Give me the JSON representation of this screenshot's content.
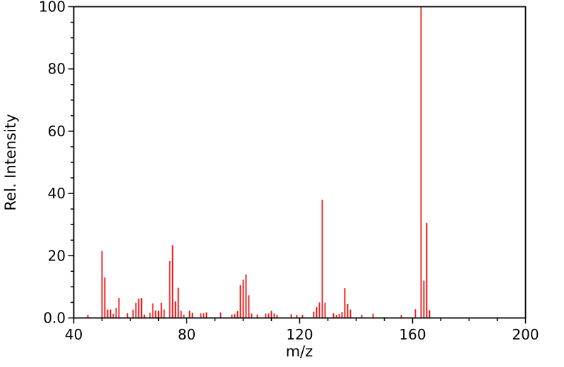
{
  "chart_data": {
    "type": "bar",
    "title": "",
    "xlabel": "m/z",
    "ylabel": "Rel. Intensity",
    "xlim": [
      40,
      200
    ],
    "ylim": [
      0,
      100
    ],
    "x_major_ticks": [
      40,
      80,
      120,
      160,
      200
    ],
    "x_major_tick_labels": [
      "40",
      "80",
      "120",
      "160",
      "200"
    ],
    "x_minor_step": 10,
    "y_major_ticks": [
      0,
      20,
      40,
      60,
      80,
      100
    ],
    "y_major_tick_labels": [
      "0.0",
      "20",
      "40",
      "60",
      "80",
      "100"
    ],
    "y_minor_step": 5,
    "grid": false,
    "legend": false,
    "bar_color": "#ee1111",
    "axis_color": "#000000",
    "background_color": "#ffffff",
    "peaks_format": "[m_over_z, relative_intensity_percent]",
    "peaks": [
      [
        45,
        1.0
      ],
      [
        50,
        21.5
      ],
      [
        51,
        13.0
      ],
      [
        52,
        2.7
      ],
      [
        53,
        2.7
      ],
      [
        54,
        1.3
      ],
      [
        55,
        3.3
      ],
      [
        56,
        6.5
      ],
      [
        59,
        1.5
      ],
      [
        61,
        2.7
      ],
      [
        62,
        4.9
      ],
      [
        63,
        6.2
      ],
      [
        64,
        6.4
      ],
      [
        65,
        1.1
      ],
      [
        67,
        1.7
      ],
      [
        68,
        4.7
      ],
      [
        69,
        2.4
      ],
      [
        70,
        2.3
      ],
      [
        71,
        4.9
      ],
      [
        72,
        2.7
      ],
      [
        74,
        18.3
      ],
      [
        75,
        23.4
      ],
      [
        76,
        5.3
      ],
      [
        77,
        9.7
      ],
      [
        78,
        2.3
      ],
      [
        79,
        1.1
      ],
      [
        81,
        2.3
      ],
      [
        82,
        1.7
      ],
      [
        85,
        1.5
      ],
      [
        86,
        1.5
      ],
      [
        87,
        1.8
      ],
      [
        92,
        1.8
      ],
      [
        96,
        1.1
      ],
      [
        97,
        1.3
      ],
      [
        98,
        2.2
      ],
      [
        99,
        10.5
      ],
      [
        100,
        12.3
      ],
      [
        101,
        14.0
      ],
      [
        102,
        7.3
      ],
      [
        103,
        1.4
      ],
      [
        105,
        1.1
      ],
      [
        108,
        1.4
      ],
      [
        109,
        1.4
      ],
      [
        110,
        2.3
      ],
      [
        111,
        1.4
      ],
      [
        112,
        1.0
      ],
      [
        117,
        1.2
      ],
      [
        119,
        1.0
      ],
      [
        121,
        1.0
      ],
      [
        125,
        2.0
      ],
      [
        126,
        3.5
      ],
      [
        127,
        5.0
      ],
      [
        128,
        38.0
      ],
      [
        129,
        4.9
      ],
      [
        132,
        1.5
      ],
      [
        133,
        1.0
      ],
      [
        134,
        1.2
      ],
      [
        135,
        1.9
      ],
      [
        136,
        9.6
      ],
      [
        137,
        4.5
      ],
      [
        138,
        2.7
      ],
      [
        142,
        1.0
      ],
      [
        146,
        1.4
      ],
      [
        156,
        1.0
      ],
      [
        161,
        2.8
      ],
      [
        163,
        100.0
      ],
      [
        164,
        12.0
      ],
      [
        165,
        30.5
      ],
      [
        166,
        2.5
      ]
    ]
  }
}
